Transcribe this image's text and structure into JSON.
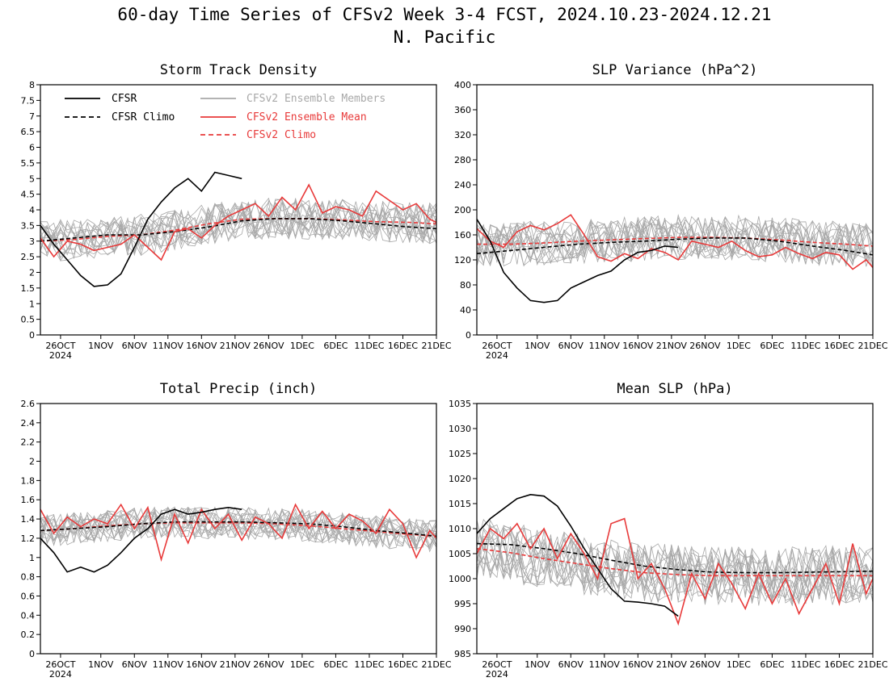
{
  "title": {
    "line1": "60-day Time Series of CFSv2 Week 3-4 FCST, 2024.10.23-2024.12.21",
    "line2": "N. Pacific"
  },
  "colors": {
    "cfsr": "#000000",
    "ensemble_members": "#a8a8a8",
    "ensemble_mean": "#e83a3a",
    "cfsv2_climo": "#e83a3a"
  },
  "x_axis": {
    "tick_labels": [
      "26OCT",
      "1NOV",
      "6NOV",
      "11NOV",
      "16NOV",
      "21NOV",
      "26NOV",
      "1DEC",
      "6DEC",
      "11DEC",
      "16DEC",
      "21DEC"
    ],
    "tick_days": [
      3,
      9,
      14,
      19,
      24,
      29,
      34,
      39,
      44,
      49,
      54,
      59
    ],
    "year_label": "2024",
    "range_days": [
      0,
      59
    ]
  },
  "legend": {
    "cfsr": "CFSR",
    "cfsr_climo": "CFSR Climo",
    "ensemble_members": "CFSv2 Ensemble Members",
    "ensemble_mean": "CFSv2 Ensemble Mean",
    "cfsv2_climo": "CFSv2 Climo"
  },
  "chart_data": [
    {
      "type": "line",
      "title": "Storm Track Density",
      "ylim": [
        0,
        8
      ],
      "yticks": [
        "0",
        "0.5",
        "1",
        "1.5",
        "2",
        "2.5",
        "3",
        "3.5",
        "4",
        "4.5",
        "5",
        "5.5",
        "6",
        "6.5",
        "7",
        "7.5",
        "8"
      ],
      "ytick_values": [
        0,
        0.5,
        1,
        1.5,
        2,
        2.5,
        3,
        3.5,
        4,
        4.5,
        5,
        5.5,
        6,
        6.5,
        7,
        7.5,
        8
      ],
      "series": [
        {
          "name": "CFSR",
          "x": [
            0,
            2,
            4,
            6,
            8,
            10,
            12,
            14,
            16,
            18,
            20,
            22,
            24,
            26,
            28,
            30
          ],
          "values": [
            3.5,
            2.9,
            2.4,
            1.9,
            1.55,
            1.6,
            1.95,
            2.8,
            3.7,
            4.25,
            4.7,
            5.0,
            4.6,
            5.2,
            5.1,
            5.0
          ]
        },
        {
          "name": "CFSR Climo",
          "x": [
            0,
            5,
            10,
            15,
            20,
            25,
            30,
            35,
            40,
            45,
            50,
            55,
            59
          ],
          "values": [
            3.0,
            3.1,
            3.2,
            3.2,
            3.3,
            3.45,
            3.65,
            3.72,
            3.72,
            3.65,
            3.55,
            3.45,
            3.4
          ]
        },
        {
          "name": "CFSv2 Ensemble Mean",
          "x": [
            0,
            2,
            4,
            6,
            8,
            10,
            12,
            14,
            16,
            18,
            20,
            22,
            24,
            26,
            28,
            30,
            32,
            34,
            36,
            38,
            40,
            42,
            44,
            46,
            48,
            50,
            52,
            54,
            56,
            58,
            59
          ],
          "values": [
            3.1,
            2.5,
            3.0,
            2.9,
            2.7,
            2.8,
            2.9,
            3.2,
            2.8,
            2.4,
            3.3,
            3.4,
            3.1,
            3.5,
            3.8,
            4.0,
            4.2,
            3.8,
            4.4,
            4.0,
            4.8,
            3.9,
            4.1,
            4.0,
            3.8,
            4.6,
            4.3,
            4.0,
            4.2,
            3.7,
            3.6
          ]
        },
        {
          "name": "CFSv2 Climo",
          "x": [
            0,
            5,
            10,
            15,
            20,
            25,
            30,
            35,
            40,
            45,
            50,
            55,
            59
          ],
          "values": [
            3.0,
            3.05,
            3.15,
            3.2,
            3.35,
            3.55,
            3.7,
            3.72,
            3.72,
            3.68,
            3.62,
            3.6,
            3.55
          ]
        }
      ]
    },
    {
      "type": "line",
      "title": "SLP Variance (hPa^2)",
      "ylim": [
        0,
        400
      ],
      "yticks": [
        "0",
        "40",
        "80",
        "120",
        "160",
        "200",
        "240",
        "280",
        "320",
        "360",
        "400"
      ],
      "ytick_values": [
        0,
        40,
        80,
        120,
        160,
        200,
        240,
        280,
        320,
        360,
        400
      ],
      "series": [
        {
          "name": "CFSR",
          "x": [
            0,
            2,
            4,
            6,
            8,
            10,
            12,
            14,
            16,
            18,
            20,
            22,
            24,
            26,
            28,
            30
          ],
          "values": [
            185,
            150,
            100,
            75,
            55,
            52,
            55,
            75,
            85,
            95,
            102,
            120,
            132,
            135,
            142,
            140
          ]
        },
        {
          "name": "CFSR Climo",
          "x": [
            0,
            5,
            10,
            15,
            20,
            25,
            30,
            35,
            40,
            45,
            50,
            55,
            59
          ],
          "values": [
            130,
            135,
            140,
            145,
            148,
            150,
            153,
            155,
            155,
            150,
            142,
            135,
            128
          ]
        },
        {
          "name": "CFSv2 Ensemble Mean",
          "x": [
            0,
            2,
            4,
            6,
            8,
            10,
            12,
            14,
            16,
            18,
            20,
            22,
            24,
            26,
            28,
            30,
            32,
            34,
            36,
            38,
            40,
            42,
            44,
            46,
            48,
            50,
            52,
            54,
            56,
            58,
            59
          ],
          "values": [
            170,
            150,
            140,
            165,
            175,
            168,
            178,
            192,
            160,
            125,
            118,
            130,
            122,
            138,
            132,
            120,
            150,
            145,
            140,
            150,
            135,
            125,
            128,
            140,
            130,
            122,
            132,
            128,
            105,
            120,
            108
          ]
        },
        {
          "name": "CFSv2 Climo",
          "x": [
            0,
            5,
            10,
            15,
            20,
            25,
            30,
            35,
            40,
            45,
            50,
            55,
            59
          ],
          "values": [
            145,
            145,
            147,
            150,
            152,
            154,
            156,
            156,
            155,
            152,
            148,
            145,
            142
          ]
        }
      ]
    },
    {
      "type": "line",
      "title": "Total Precip (inch)",
      "ylim": [
        0,
        2.6
      ],
      "yticks": [
        "0",
        "0.2",
        "0.4",
        "0.6",
        "0.8",
        "1",
        "1.2",
        "1.4",
        "1.6",
        "1.8",
        "2",
        "2.2",
        "2.4",
        "2.6"
      ],
      "ytick_values": [
        0,
        0.2,
        0.4,
        0.6,
        0.8,
        1.0,
        1.2,
        1.4,
        1.6,
        1.8,
        2.0,
        2.2,
        2.4,
        2.6
      ],
      "series": [
        {
          "name": "CFSR",
          "x": [
            0,
            2,
            4,
            6,
            8,
            10,
            12,
            14,
            16,
            18,
            20,
            22,
            24,
            26,
            28,
            30
          ],
          "values": [
            1.2,
            1.05,
            0.85,
            0.9,
            0.85,
            0.92,
            1.05,
            1.2,
            1.3,
            1.45,
            1.5,
            1.45,
            1.47,
            1.5,
            1.52,
            1.5
          ]
        },
        {
          "name": "CFSR Climo",
          "x": [
            0,
            5,
            10,
            15,
            20,
            25,
            30,
            35,
            40,
            45,
            50,
            55,
            59
          ],
          "values": [
            1.28,
            1.3,
            1.32,
            1.35,
            1.37,
            1.37,
            1.37,
            1.36,
            1.35,
            1.32,
            1.28,
            1.25,
            1.22
          ]
        },
        {
          "name": "CFSv2 Ensemble Mean",
          "x": [
            0,
            2,
            4,
            6,
            8,
            10,
            12,
            14,
            16,
            18,
            20,
            22,
            24,
            26,
            28,
            30,
            32,
            34,
            36,
            38,
            40,
            42,
            44,
            46,
            48,
            50,
            52,
            54,
            56,
            58,
            59
          ],
          "values": [
            1.5,
            1.25,
            1.42,
            1.32,
            1.4,
            1.35,
            1.55,
            1.3,
            1.52,
            0.98,
            1.45,
            1.15,
            1.5,
            1.3,
            1.45,
            1.18,
            1.42,
            1.35,
            1.2,
            1.55,
            1.3,
            1.48,
            1.3,
            1.45,
            1.38,
            1.25,
            1.5,
            1.35,
            1.0,
            1.28,
            1.2
          ]
        },
        {
          "name": "CFSv2 Climo",
          "x": [
            0,
            5,
            10,
            15,
            20,
            25,
            30,
            35,
            40,
            45,
            50,
            55,
            59
          ],
          "values": [
            1.28,
            1.3,
            1.33,
            1.35,
            1.36,
            1.36,
            1.36,
            1.35,
            1.33,
            1.3,
            1.27,
            1.24,
            1.22
          ]
        }
      ]
    },
    {
      "type": "line",
      "title": "Mean SLP (hPa)",
      "ylim": [
        985,
        1035
      ],
      "yticks": [
        "985",
        "990",
        "995",
        "1000",
        "1005",
        "1010",
        "1015",
        "1020",
        "1025",
        "1030",
        "1035"
      ],
      "ytick_values": [
        985,
        990,
        995,
        1000,
        1005,
        1010,
        1015,
        1020,
        1025,
        1030,
        1035
      ],
      "series": [
        {
          "name": "CFSR",
          "x": [
            0,
            2,
            4,
            6,
            8,
            10,
            12,
            14,
            16,
            18,
            20,
            22,
            24,
            26,
            28,
            30
          ],
          "values": [
            1009,
            1012,
            1014,
            1016,
            1016.8,
            1016.5,
            1014.5,
            1010.5,
            1006,
            1002,
            998,
            995.5,
            995.3,
            995,
            994.5,
            992.5
          ]
        },
        {
          "name": "CFSR Climo",
          "x": [
            0,
            5,
            10,
            15,
            20,
            25,
            30,
            35,
            40,
            45,
            50,
            55,
            59
          ],
          "values": [
            1007,
            1006.8,
            1006,
            1005,
            1003.7,
            1002.5,
            1001.8,
            1001.3,
            1001.2,
            1001.2,
            1001.3,
            1001.4,
            1001.5
          ]
        },
        {
          "name": "CFSv2 Ensemble Mean",
          "x": [
            0,
            2,
            4,
            6,
            8,
            10,
            12,
            14,
            16,
            18,
            20,
            22,
            24,
            26,
            28,
            30,
            32,
            34,
            36,
            38,
            40,
            42,
            44,
            46,
            48,
            50,
            52,
            54,
            56,
            58,
            59
          ],
          "values": [
            1005,
            1010,
            1008,
            1011,
            1006,
            1010,
            1004,
            1009,
            1005,
            1000,
            1011,
            1012,
            1000,
            1003,
            998,
            991,
            1001,
            996,
            1003,
            999,
            994,
            1001,
            995,
            1000,
            993,
            998,
            1003,
            995,
            1007,
            997,
            1000
          ]
        },
        {
          "name": "CFSv2 Climo",
          "x": [
            0,
            5,
            10,
            15,
            20,
            25,
            30,
            35,
            40,
            45,
            50,
            55,
            59
          ],
          "values": [
            1006,
            1005.2,
            1004,
            1003,
            1002,
            1001.2,
            1000.8,
            1000.6,
            1000.6,
            1000.6,
            1000.6,
            1000.6,
            1000.6
          ]
        }
      ]
    }
  ]
}
